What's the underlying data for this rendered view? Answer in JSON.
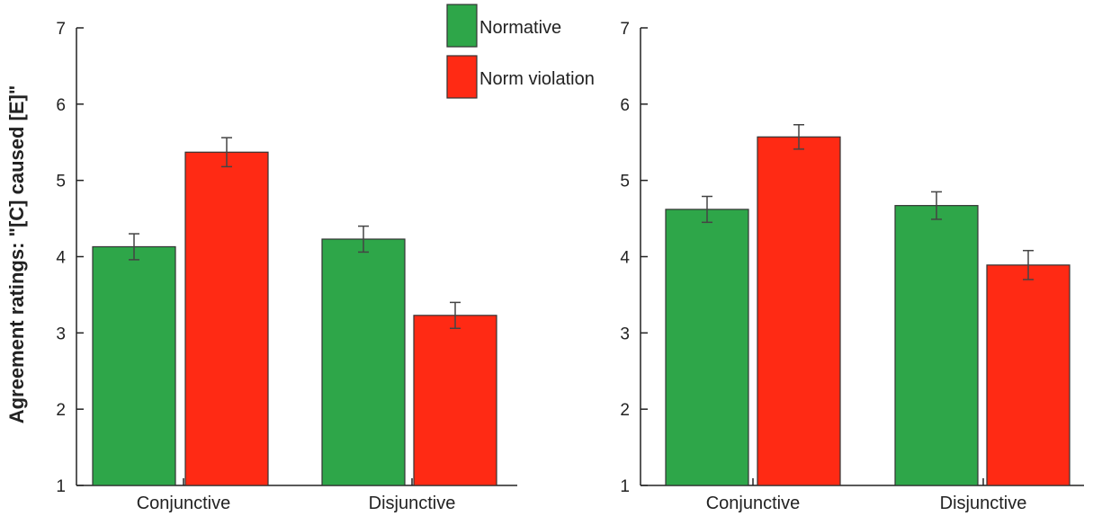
{
  "chart_data": [
    {
      "type": "bar",
      "panel": "left",
      "ylabel": "Agreement ratings: \"[C] caused [E]\"",
      "ylim": [
        1,
        7
      ],
      "yticks": [
        "1",
        "2",
        "3",
        "4",
        "5",
        "6",
        "7"
      ],
      "categories": [
        "Conjunctive",
        "Disjunctive"
      ],
      "series": [
        {
          "name": "Normative",
          "color": "#2ea649",
          "values": [
            4.13,
            4.23
          ],
          "errors": [
            0.17,
            0.17
          ]
        },
        {
          "name": "Norm violation",
          "color": "#ff2a14",
          "values": [
            5.37,
            3.23
          ],
          "errors": [
            0.19,
            0.17
          ]
        }
      ],
      "legend": {
        "placement": "top-right",
        "entries": [
          "Normative",
          "Norm violation"
        ]
      },
      "grid": false
    },
    {
      "type": "bar",
      "panel": "right",
      "ylabel": "",
      "ylim": [
        1,
        7
      ],
      "yticks": [
        "1",
        "2",
        "3",
        "4",
        "5",
        "6",
        "7"
      ],
      "categories": [
        "Conjunctive",
        "Disjunctive"
      ],
      "series": [
        {
          "name": "Normative",
          "color": "#2ea649",
          "values": [
            4.62,
            4.67
          ],
          "errors": [
            0.17,
            0.18
          ]
        },
        {
          "name": "Norm violation",
          "color": "#ff2a14",
          "values": [
            5.57,
            3.89
          ],
          "errors": [
            0.16,
            0.19
          ]
        }
      ],
      "grid": false
    }
  ]
}
